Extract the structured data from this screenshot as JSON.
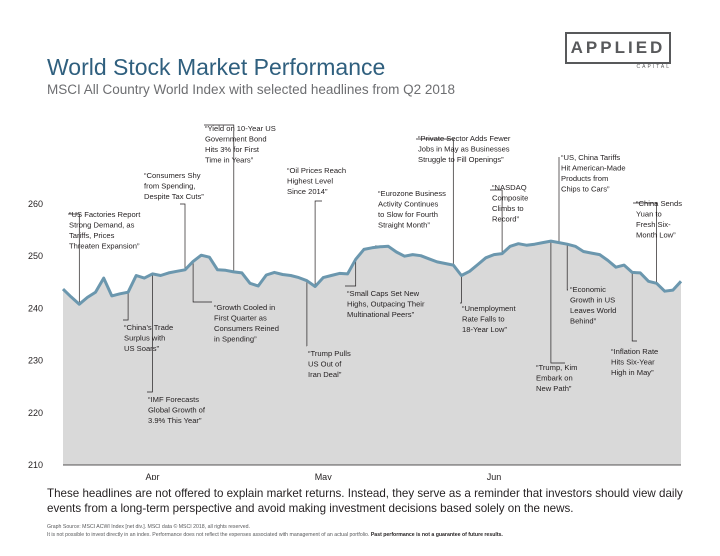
{
  "header": {
    "title": "World Stock Market Performance",
    "subtitle": "MSCI All Country World Index with selected headlines from Q2 2018",
    "logo_main": "APPLIED",
    "logo_sub": "CAPITAL"
  },
  "chart_data": {
    "type": "area",
    "title": "World Stock Market Performance",
    "subtitle": "MSCI All Country World Index with selected headlines from Q2 2018",
    "ylim": [
      210,
      262
    ],
    "y_ticks": [
      210,
      220,
      230,
      240,
      250,
      260
    ],
    "x_ticks": [
      "Apr",
      "May",
      "Jun"
    ],
    "x_tick_index": [
      11,
      32,
      53
    ],
    "grid": false,
    "colors": {
      "line": "#6b97ae",
      "fill": "#d9d9d9"
    },
    "series": [
      {
        "values": [
          243.7,
          242.2,
          240.8,
          242.1,
          243.1,
          245.8,
          242.4,
          242.8,
          243.1,
          246.3,
          245.8,
          246.6,
          246.3,
          246.8,
          247.1,
          247.4,
          249.0,
          250.2,
          249.8,
          247.4,
          247.3,
          247.0,
          246.8,
          244.8,
          244.3,
          246.4,
          246.9,
          246.5,
          246.3,
          245.9,
          245.3,
          244.2,
          245.9,
          246.3,
          246.7,
          246.6,
          249.4,
          251.3,
          251.6,
          251.8,
          251.9,
          250.8,
          250.0,
          250.3,
          250.1,
          249.5,
          248.9,
          248.6,
          248.3,
          246.3,
          247.1,
          248.4,
          249.7,
          250.3,
          250.5,
          251.9,
          252.4,
          252.1,
          252.3,
          252.6,
          252.9,
          252.6,
          252.3,
          251.9,
          250.9,
          250.6,
          250.3,
          249.2,
          247.9,
          248.3,
          246.9,
          246.8,
          245.2,
          244.8,
          243.3,
          243.5,
          245.2
        ]
      }
    ],
    "annotations": [
      {
        "text": "“US Factories Report Strong Demand, as Tariffs, Prices Threaten Expansion”",
        "index": 2
      },
      {
        "text": "“China’s Trade Surplus with US Soars”",
        "index": 8
      },
      {
        "text": "“IMF Forecasts Global Growth of 3.9% This Year”",
        "index": 11
      },
      {
        "text": "“Consumers Shy from Spending, Despite Tax Cuts”",
        "index": 15
      },
      {
        "text": "“Yield on 10-Year US Government Bond Hits 3% for First Time in Years”",
        "index": 21
      },
      {
        "text": "“Growth Cooled in First Quarter as Consumers Reined in Spending”",
        "index": 16
      },
      {
        "text": "“Oil Prices Reach Highest Level Since 2014”",
        "index": 31
      },
      {
        "text": "“Trump Pulls US Out of Iran Deal”",
        "index": 30
      },
      {
        "text": "“Eurozone Business Activity Continues to Slow for Fourth Straight Month”",
        "index": 40
      },
      {
        "text": "“Small Caps Set New Highs, Outpacing Their Multinational Peers”",
        "index": 36
      },
      {
        "text": "“Private Sector Adds Fewer Jobs in May as Businesses Struggle to Fill Openings”",
        "index": 48
      },
      {
        "text": "“NASDAQ Composite Climbs to Record”",
        "index": 54
      },
      {
        "text": "“Unemployment Rate Falls to 18-Year Low”",
        "index": 49
      },
      {
        "text": "“US, China Tariffs Hit American-Made Products from Chips to Cars”",
        "index": 61
      },
      {
        "text": "“Trump, Kim Embark on New Path”",
        "index": 60
      },
      {
        "text": "“Economic Growth in US Leaves World Behind”",
        "index": 62
      },
      {
        "text": "“China Sends Yuan to Fresh Six-Month Low”",
        "index": 73
      },
      {
        "text": "“Inflation Rate Hits Six-Year High in May”",
        "index": 70
      }
    ]
  },
  "footnote": "These headlines are not offered to explain market returns. Instead, they serve as a reminder that investors should view daily events from a long-term perspective and avoid making investment decisions based solely on the news.",
  "source": "Graph Source: MSCI ACWI Index [net div.]. MSCI data © MSCI 2018, all rights reserved.",
  "disclaimer": "It is not possible to invest directly in an index. Performance does not reflect the expenses associated with management of an actual portfolio.",
  "disclaimer_bold": "Past performance is not a guarantee of future results."
}
